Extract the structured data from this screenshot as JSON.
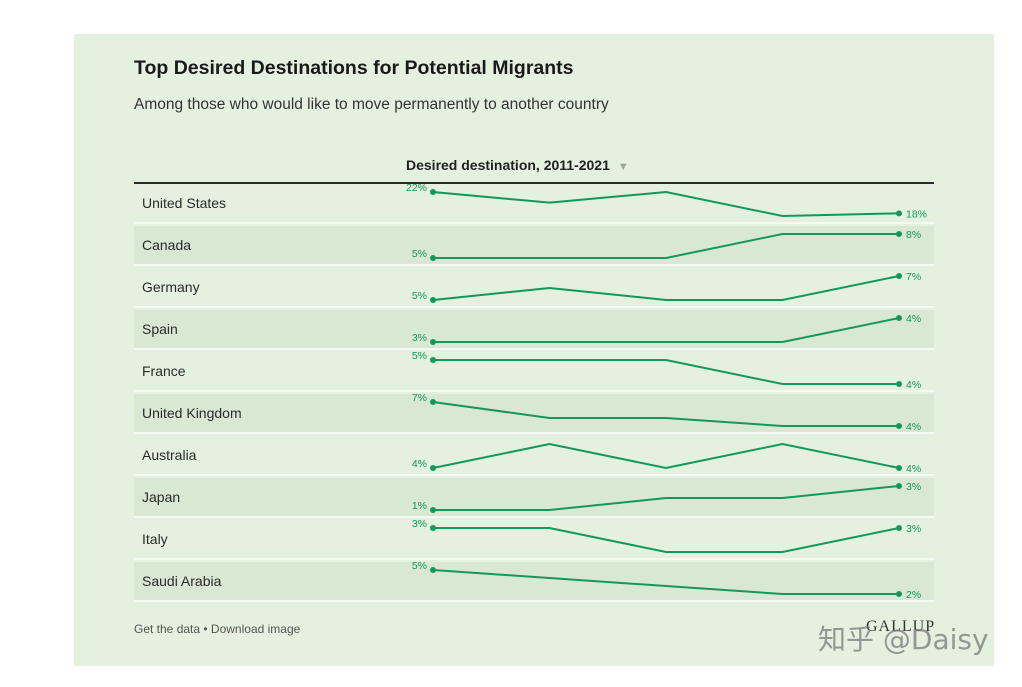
{
  "header": {
    "title": "Top Desired Destinations for Potential Migrants",
    "subtitle": "Among those who would like to move permanently to another country",
    "column_label": "Desired destination, 2011-2021",
    "sort_arrow": "▼"
  },
  "footer": {
    "get_data": "Get the data",
    "separator": " • ",
    "download": "Download image",
    "logo": "GALLUP"
  },
  "watermark": "知乎 @Daisy",
  "colors": {
    "line": "#13985a",
    "background": "#e3f1de",
    "row_alt": "#d9e8d3"
  },
  "chart_data": {
    "type": "line",
    "title": "Top Desired Destinations for Potential Migrants",
    "subtitle": "Among those who would like to move permanently to another country",
    "column_label": "Desired destination, 2011-2021",
    "unit": "%",
    "points_per_series": 5,
    "series": [
      {
        "name": "United States",
        "values": [
          22,
          20,
          22,
          17.5,
          18
        ],
        "start_label": "22%",
        "end_label": "18%"
      },
      {
        "name": "Canada",
        "values": [
          5,
          5,
          5,
          8,
          8
        ],
        "start_label": "5%",
        "end_label": "8%"
      },
      {
        "name": "Germany",
        "values": [
          5,
          6,
          5,
          5,
          7
        ],
        "start_label": "5%",
        "end_label": "7%"
      },
      {
        "name": "Spain",
        "values": [
          3,
          3,
          3,
          3,
          4
        ],
        "start_label": "3%",
        "end_label": "4%"
      },
      {
        "name": "France",
        "values": [
          5,
          5,
          5,
          4,
          4
        ],
        "start_label": "5%",
        "end_label": "4%"
      },
      {
        "name": "United Kingdom",
        "values": [
          7,
          5,
          5,
          4,
          4
        ],
        "start_label": "7%",
        "end_label": "4%"
      },
      {
        "name": "Australia",
        "values": [
          4,
          5,
          4,
          5,
          4
        ],
        "start_label": "4%",
        "end_label": "4%"
      },
      {
        "name": "Japan",
        "values": [
          1,
          1,
          2,
          2,
          3
        ],
        "start_label": "1%",
        "end_label": "3%"
      },
      {
        "name": "Italy",
        "values": [
          3,
          3,
          2,
          2,
          3
        ],
        "start_label": "3%",
        "end_label": "3%"
      },
      {
        "name": "Saudi Arabia",
        "values": [
          5,
          4,
          3,
          2,
          2
        ],
        "start_label": "5%",
        "end_label": "2%"
      }
    ]
  }
}
